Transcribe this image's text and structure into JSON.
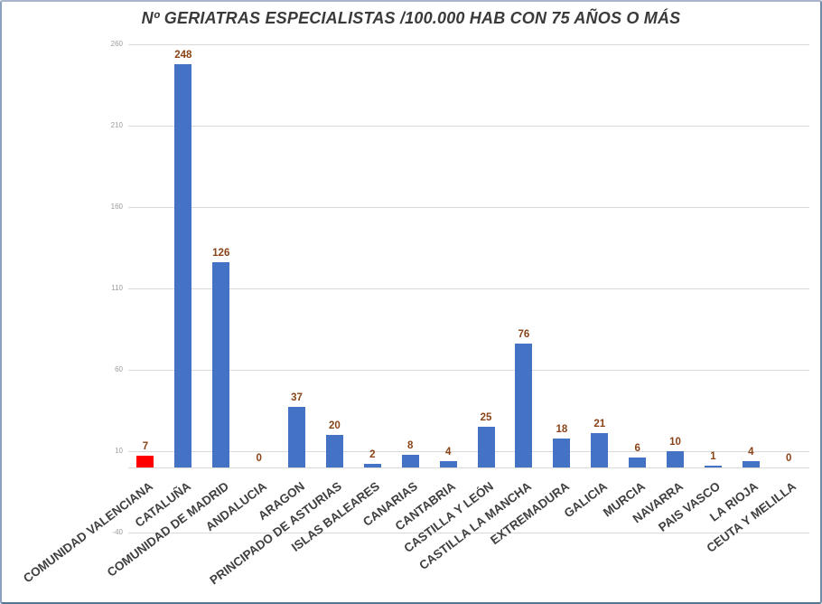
{
  "title": "Nº GERIATRAS ESPECIALISTAS /100.000 HAB CON 75 AÑOS O MÁS",
  "chart_data": {
    "type": "bar",
    "title": "Nº GERIATRAS ESPECIALISTAS /100.000 HAB CON 75 AÑOS O MÁS",
    "xlabel": "",
    "ylabel": "",
    "categories": [
      "COMUNIDAD VALENCIANA",
      "CATALUÑA",
      "COMUNIDAD DE MADRID",
      "ANDALUCIA",
      "ARAGON",
      "PRINCIPADO DE ASTURIAS",
      "ISLAS BALEARES",
      "CANARIAS",
      "CANTABRIA",
      "CASTILLA Y LEÓN",
      "CASTILLA LA MANCHA",
      "EXTREMADURA",
      "GALICIA",
      "MURCIA",
      "NAVARRA",
      "PAIS VASCO",
      "LA RIOJA",
      "CEUTA Y MELILLA"
    ],
    "values": [
      7,
      248,
      126,
      0,
      37,
      20,
      2,
      8,
      4,
      25,
      76,
      18,
      21,
      6,
      10,
      1,
      4,
      0
    ],
    "bar_colors": [
      "#fe0000",
      "#4472c4",
      "#4472c4",
      "#4472c4",
      "#4472c4",
      "#4472c4",
      "#4472c4",
      "#4472c4",
      "#4472c4",
      "#4472c4",
      "#4472c4",
      "#4472c4",
      "#4472c4",
      "#4472c4",
      "#4472c4",
      "#4472c4",
      "#4472c4",
      "#4472c4"
    ],
    "highlight": {
      "category": "COMUNIDAD VALENCIANA",
      "color": "#fe0000"
    },
    "bar_color_default": "#4472c4",
    "data_labels": true,
    "data_label_color": "#8a4317",
    "y_ticks": [
      260,
      210,
      160,
      110,
      60,
      10,
      -40
    ],
    "ylim": [
      -40,
      260
    ],
    "grid": true,
    "gridline_color": "#d9d9d9",
    "axis_tick_color": "#9c9c9c",
    "category_label_color": "#3f3f3f",
    "title_color": "#3a3a3a",
    "legend": "none"
  },
  "frame": {
    "background": "#ffffff",
    "border_color": "#7d97b5"
  }
}
